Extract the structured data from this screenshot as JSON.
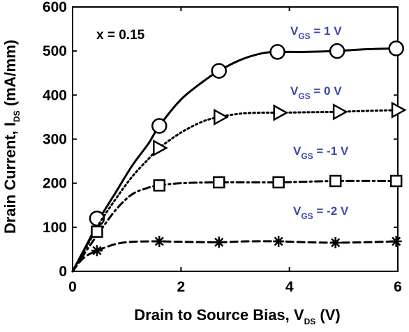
{
  "chart_data": {
    "type": "line",
    "xlabel_main": "Drain to Source Bias, V",
    "xlabel_sub": "DS",
    "xlabel_unit": " (V)",
    "ylabel_main": "Drain Current, I",
    "ylabel_sub": "DS",
    "ylabel_unit": " (mA/mm)",
    "annotation": "x = 0.15",
    "xlim": [
      0,
      6
    ],
    "ylim": [
      0,
      600
    ],
    "xticks": [
      0,
      2,
      4,
      6
    ],
    "yticks": [
      0,
      100,
      200,
      300,
      400,
      500,
      600
    ],
    "xtick_labels": [
      "0",
      "2",
      "4",
      "6"
    ],
    "ytick_labels": [
      "0",
      "100",
      "200",
      "300",
      "400",
      "500",
      "600"
    ],
    "grid": false,
    "series": [
      {
        "name_main": "V",
        "name_sub": "GS",
        "name_value": " = 1 V",
        "line_style": "solid",
        "marker": "circle",
        "x": [
          0,
          0.3,
          0.5,
          0.8,
          1.1,
          1.4,
          1.6,
          2.0,
          2.4,
          2.7,
          3.1,
          3.5,
          3.8,
          4.3,
          4.85,
          5.4,
          6.0
        ],
        "y": [
          0,
          70,
          120,
          180,
          240,
          290,
          330,
          390,
          430,
          455,
          480,
          495,
          498,
          498,
          500,
          504,
          506
        ],
        "marker_x": [
          0.45,
          1.6,
          2.7,
          3.78,
          4.88,
          5.97
        ],
        "marker_y": [
          120,
          330,
          455,
          498,
          500,
          506
        ]
      },
      {
        "name_main": "V",
        "name_sub": "GS",
        "name_value": " = 0 V",
        "line_style": "dotted",
        "marker": "triangle-right",
        "x": [
          0,
          0.3,
          0.5,
          0.8,
          1.1,
          1.4,
          1.6,
          2.0,
          2.4,
          2.7,
          3.1,
          3.5,
          3.8,
          4.3,
          4.85,
          5.4,
          6.0
        ],
        "y": [
          0,
          65,
          110,
          165,
          215,
          255,
          280,
          315,
          340,
          350,
          358,
          360,
          360,
          361,
          362,
          364,
          366
        ],
        "marker_x": [
          1.6,
          2.72,
          3.82,
          4.92,
          6.0
        ],
        "marker_y": [
          280,
          350,
          360,
          362,
          366
        ]
      },
      {
        "name_main": "V",
        "name_sub": "GS",
        "name_value": " = -1 V",
        "line_style": "dashdot",
        "marker": "square",
        "x": [
          0,
          0.3,
          0.5,
          0.8,
          1.1,
          1.4,
          1.6,
          2.0,
          2.7,
          3.8,
          4.85,
          6.0
        ],
        "y": [
          0,
          55,
          90,
          140,
          175,
          190,
          195,
          200,
          202,
          202,
          205,
          205
        ],
        "marker_x": [
          0.45,
          1.6,
          2.7,
          3.8,
          4.85,
          5.97
        ],
        "marker_y": [
          90,
          195,
          202,
          202,
          205,
          205
        ]
      },
      {
        "name_main": "V",
        "name_sub": "GS",
        "name_value": " = -2 V",
        "line_style": "dashed",
        "marker": "asterisk",
        "x": [
          0,
          0.2,
          0.45,
          0.8,
          1.1,
          1.6,
          2.0,
          2.7,
          3.2,
          3.8,
          4.3,
          4.85,
          5.4,
          5.97
        ],
        "y": [
          0,
          30,
          47,
          62,
          67,
          68,
          67,
          66,
          68,
          68,
          66,
          65,
          66,
          68
        ],
        "marker_x": [
          0.45,
          1.6,
          2.7,
          3.8,
          4.85,
          5.97
        ],
        "marker_y": [
          47,
          68,
          66,
          68,
          65,
          68
        ]
      }
    ]
  }
}
